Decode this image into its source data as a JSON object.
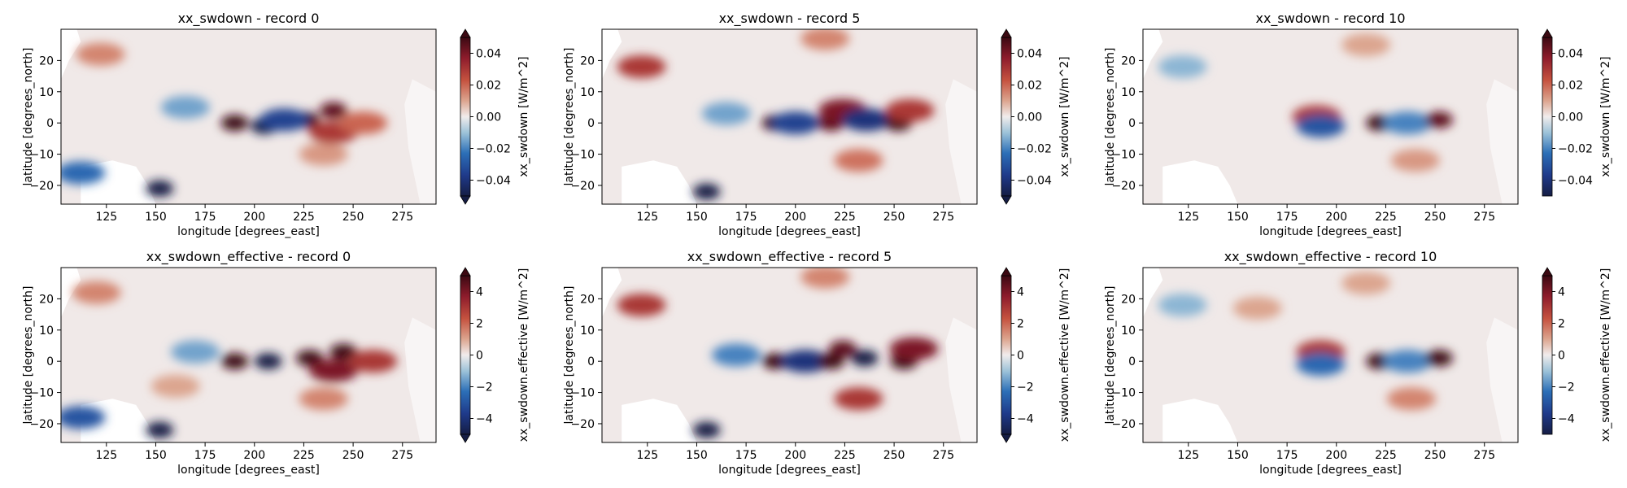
{
  "chart_data": [
    {
      "type": "heatmap",
      "title": "xx_swdown - record 0",
      "xlabel": "longitude [degrees_east]",
      "ylabel": "latitude [degrees_north]",
      "xlim": [
        102,
        292
      ],
      "ylim": [
        -26,
        30
      ],
      "xticks": [
        125,
        150,
        175,
        200,
        225,
        250,
        275
      ],
      "yticks": [
        -20,
        -10,
        0,
        10,
        20
      ],
      "colorbar": {
        "label": "xx_swdown [W/m^2]",
        "vmin": -0.05,
        "vmax": 0.05,
        "ticks": [
          -0.04,
          -0.02,
          0.0,
          0.02,
          0.04
        ],
        "extend": "both",
        "colormap": "balance"
      },
      "features": [
        {
          "lon": 190,
          "lat": 0,
          "value": 0.05
        },
        {
          "lon": 205,
          "lat": -1,
          "value": -0.05
        },
        {
          "lon": 226,
          "lat": 1,
          "value": 0.05
        },
        {
          "lon": 240,
          "lat": 4,
          "value": 0.045
        },
        {
          "lon": 240,
          "lat": -3,
          "value": 0.03
        },
        {
          "lon": 215,
          "lat": 1,
          "value": -0.035
        },
        {
          "lon": 255,
          "lat": 0,
          "value": 0.02
        },
        {
          "lon": 152,
          "lat": -21,
          "value": -0.05
        },
        {
          "lon": 112,
          "lat": -16,
          "value": -0.025
        },
        {
          "lon": 122,
          "lat": 22,
          "value": 0.015
        },
        {
          "lon": 235,
          "lat": -10,
          "value": 0.012
        },
        {
          "lon": 165,
          "lat": 5,
          "value": -0.015
        }
      ]
    },
    {
      "type": "heatmap",
      "title": "xx_swdown - record 5",
      "xlabel": "longitude [degrees_east]",
      "ylabel": "latitude [degrees_north]",
      "xlim": [
        102,
        292
      ],
      "ylim": [
        -26,
        30
      ],
      "xticks": [
        125,
        150,
        175,
        200,
        225,
        250,
        275
      ],
      "yticks": [
        -20,
        -10,
        0,
        10,
        20
      ],
      "colorbar": {
        "label": "xx_swdown [W/m^2]",
        "vmin": -0.05,
        "vmax": 0.05,
        "ticks": [
          -0.04,
          -0.02,
          0.0,
          0.02,
          0.04
        ],
        "extend": "both",
        "colormap": "balance"
      },
      "features": [
        {
          "lon": 190,
          "lat": 0,
          "value": 0.05
        },
        {
          "lon": 200,
          "lat": 0,
          "value": -0.035
        },
        {
          "lon": 218,
          "lat": 0,
          "value": 0.045
        },
        {
          "lon": 224,
          "lat": 4,
          "value": 0.04
        },
        {
          "lon": 236,
          "lat": 1,
          "value": -0.04
        },
        {
          "lon": 252,
          "lat": 0,
          "value": 0.05
        },
        {
          "lon": 258,
          "lat": 4,
          "value": 0.03
        },
        {
          "lon": 155,
          "lat": -22,
          "value": -0.05
        },
        {
          "lon": 122,
          "lat": 18,
          "value": 0.03
        },
        {
          "lon": 232,
          "lat": -12,
          "value": 0.018
        },
        {
          "lon": 215,
          "lat": 27,
          "value": 0.015
        },
        {
          "lon": 165,
          "lat": 3,
          "value": -0.015
        }
      ]
    },
    {
      "type": "heatmap",
      "title": "xx_swdown - record 10",
      "xlabel": "longitude [degrees_east]",
      "ylabel": "latitude [degrees_north]",
      "xlim": [
        102,
        292
      ],
      "ylim": [
        -26,
        30
      ],
      "xticks": [
        125,
        150,
        175,
        200,
        225,
        250,
        275
      ],
      "yticks": [
        -20,
        -10,
        0,
        10,
        20
      ],
      "colorbar": {
        "label": "xx_swdown [W/m^2]",
        "vmin": -0.05,
        "vmax": 0.05,
        "ticks": [
          -0.04,
          -0.02,
          0.0,
          0.02,
          0.04
        ],
        "extend": "max",
        "colormap": "balance"
      },
      "features": [
        {
          "lon": 190,
          "lat": 2,
          "value": 0.03
        },
        {
          "lon": 192,
          "lat": -1,
          "value": -0.03
        },
        {
          "lon": 222,
          "lat": 0,
          "value": 0.05
        },
        {
          "lon": 236,
          "lat": 0,
          "value": -0.02
        },
        {
          "lon": 252,
          "lat": 1,
          "value": 0.045
        },
        {
          "lon": 122,
          "lat": 18,
          "value": -0.012
        },
        {
          "lon": 240,
          "lat": -12,
          "value": 0.012
        },
        {
          "lon": 215,
          "lat": 25,
          "value": 0.01
        }
      ]
    },
    {
      "type": "heatmap",
      "title": "xx_swdown_effective - record 0",
      "xlabel": "longitude [degrees_east]",
      "ylabel": "latitude [degrees_north]",
      "xlim": [
        102,
        292
      ],
      "ylim": [
        -26,
        30
      ],
      "xticks": [
        125,
        150,
        175,
        200,
        225,
        250,
        275
      ],
      "yticks": [
        -20,
        -10,
        0,
        10,
        20
      ],
      "colorbar": {
        "label": "xx_swdown.effective [W/m^2]",
        "vmin": -5,
        "vmax": 5,
        "ticks": [
          -4,
          -2,
          0,
          2,
          4
        ],
        "extend": "both",
        "colormap": "balance"
      },
      "features": [
        {
          "lon": 190,
          "lat": 0,
          "value": 5
        },
        {
          "lon": 207,
          "lat": 0,
          "value": -5
        },
        {
          "lon": 228,
          "lat": 1,
          "value": 5
        },
        {
          "lon": 245,
          "lat": 3,
          "value": 5
        },
        {
          "lon": 240,
          "lat": -3,
          "value": 4
        },
        {
          "lon": 260,
          "lat": 0,
          "value": 3
        },
        {
          "lon": 152,
          "lat": -22,
          "value": -5
        },
        {
          "lon": 112,
          "lat": -18,
          "value": -3
        },
        {
          "lon": 120,
          "lat": 22,
          "value": 1.5
        },
        {
          "lon": 235,
          "lat": -12,
          "value": 1.5
        },
        {
          "lon": 170,
          "lat": 3,
          "value": -1.5
        },
        {
          "lon": 160,
          "lat": -8,
          "value": 1
        }
      ]
    },
    {
      "type": "heatmap",
      "title": "xx_swdown_effective - record 5",
      "xlabel": "longitude [degrees_east]",
      "ylabel": "latitude [degrees_north]",
      "xlim": [
        102,
        292
      ],
      "ylim": [
        -26,
        30
      ],
      "xticks": [
        125,
        150,
        175,
        200,
        225,
        250,
        275
      ],
      "yticks": [
        -20,
        -10,
        0,
        10,
        20
      ],
      "colorbar": {
        "label": "xx_swdown.effective [W/m^2]",
        "vmin": -5,
        "vmax": 5,
        "ticks": [
          -4,
          -2,
          0,
          2,
          4
        ],
        "extend": "both",
        "colormap": "balance"
      },
      "features": [
        {
          "lon": 190,
          "lat": 0,
          "value": 5
        },
        {
          "lon": 205,
          "lat": 0,
          "value": -4
        },
        {
          "lon": 218,
          "lat": 0,
          "value": 5
        },
        {
          "lon": 224,
          "lat": 4,
          "value": 4.5
        },
        {
          "lon": 235,
          "lat": 1,
          "value": -5
        },
        {
          "lon": 255,
          "lat": 0,
          "value": 5
        },
        {
          "lon": 260,
          "lat": 4,
          "value": 4
        },
        {
          "lon": 155,
          "lat": -22,
          "value": -5
        },
        {
          "lon": 122,
          "lat": 18,
          "value": 3
        },
        {
          "lon": 232,
          "lat": -12,
          "value": 3
        },
        {
          "lon": 215,
          "lat": 27,
          "value": 1.5
        },
        {
          "lon": 170,
          "lat": 2,
          "value": -2
        }
      ]
    },
    {
      "type": "heatmap",
      "title": "xx_swdown_effective - record 10",
      "xlabel": "longitude [degrees_east]",
      "ylabel": "latitude [degrees_north]",
      "xlim": [
        102,
        292
      ],
      "ylim": [
        -26,
        30
      ],
      "xticks": [
        125,
        150,
        175,
        200,
        225,
        250,
        275
      ],
      "yticks": [
        -20,
        -10,
        0,
        10,
        20
      ],
      "colorbar": {
        "label": "xx_swdown.effective [W/m^2]",
        "vmin": -5,
        "vmax": 5,
        "ticks": [
          -4,
          -2,
          0,
          2,
          4
        ],
        "extend": "max",
        "colormap": "balance"
      },
      "features": [
        {
          "lon": 192,
          "lat": 3,
          "value": 3
        },
        {
          "lon": 192,
          "lat": -1,
          "value": -2.5
        },
        {
          "lon": 222,
          "lat": 0,
          "value": 5
        },
        {
          "lon": 236,
          "lat": 0,
          "value": -2
        },
        {
          "lon": 252,
          "lat": 1,
          "value": 5
        },
        {
          "lon": 122,
          "lat": 18,
          "value": -1.2
        },
        {
          "lon": 238,
          "lat": -12,
          "value": 1.5
        },
        {
          "lon": 215,
          "lat": 25,
          "value": 1
        },
        {
          "lon": 160,
          "lat": 17,
          "value": 1
        }
      ]
    }
  ]
}
